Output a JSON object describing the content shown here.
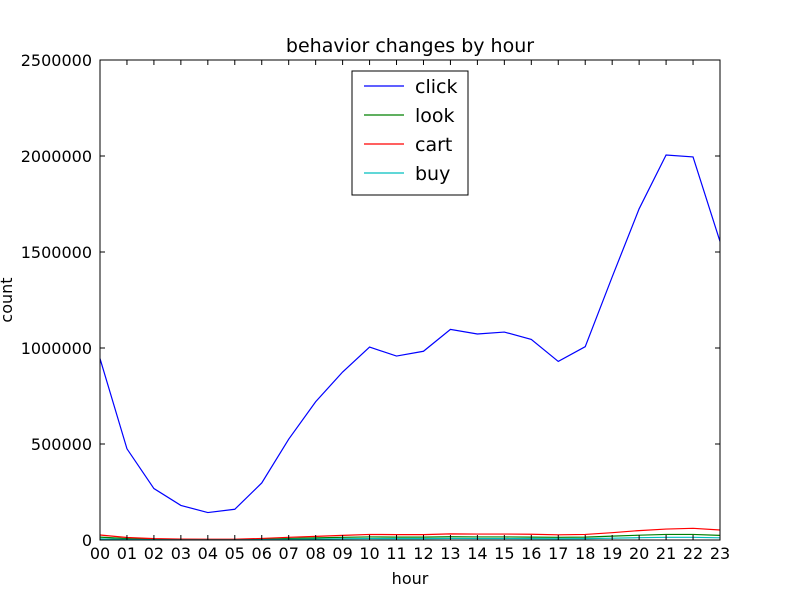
{
  "chart_data": {
    "type": "line",
    "title": "behavior changes by hour",
    "xlabel": "hour",
    "ylabel": "count",
    "categories": [
      "00",
      "01",
      "02",
      "03",
      "04",
      "05",
      "06",
      "07",
      "08",
      "09",
      "10",
      "11",
      "12",
      "13",
      "14",
      "15",
      "16",
      "17",
      "18",
      "19",
      "20",
      "21",
      "22",
      "23"
    ],
    "ylim": [
      0,
      2500000
    ],
    "yticks": [
      0,
      500000,
      1000000,
      1500000,
      2000000,
      2500000
    ],
    "ytick_labels": [
      "0",
      "500000",
      "1000000",
      "1500000",
      "2000000",
      "2500000"
    ],
    "legend_position": "top-center",
    "grid": false,
    "series": [
      {
        "name": "click",
        "color": "#0000ff",
        "values": [
          945000,
          475000,
          268000,
          180000,
          143000,
          160000,
          297000,
          525000,
          720000,
          875000,
          1005000,
          958000,
          983000,
          1097000,
          1073000,
          1083000,
          1045000,
          930000,
          1007000,
          1370000,
          1725000,
          2005000,
          1995000,
          1555000
        ]
      },
      {
        "name": "look",
        "color": "#008000",
        "values": [
          15000,
          7000,
          4000,
          3000,
          2000,
          2000,
          5000,
          8000,
          11000,
          14000,
          16000,
          15000,
          15000,
          17000,
          16000,
          16000,
          15000,
          14000,
          15000,
          20000,
          25000,
          29000,
          29000,
          24000
        ]
      },
      {
        "name": "cart",
        "color": "#ff0000",
        "values": [
          26000,
          13000,
          7000,
          5000,
          4000,
          4000,
          8000,
          14000,
          19000,
          24000,
          29000,
          28000,
          28000,
          32000,
          31000,
          31000,
          30000,
          27000,
          29000,
          38000,
          49000,
          57000,
          61000,
          52000
        ]
      },
      {
        "name": "buy",
        "color": "#00bfbf",
        "values": [
          6000,
          3000,
          1500,
          1000,
          800,
          800,
          1800,
          3500,
          5000,
          6500,
          7500,
          7000,
          7000,
          8000,
          7500,
          7500,
          7000,
          6500,
          7000,
          9500,
          12000,
          14000,
          14000,
          11500
        ]
      }
    ]
  }
}
